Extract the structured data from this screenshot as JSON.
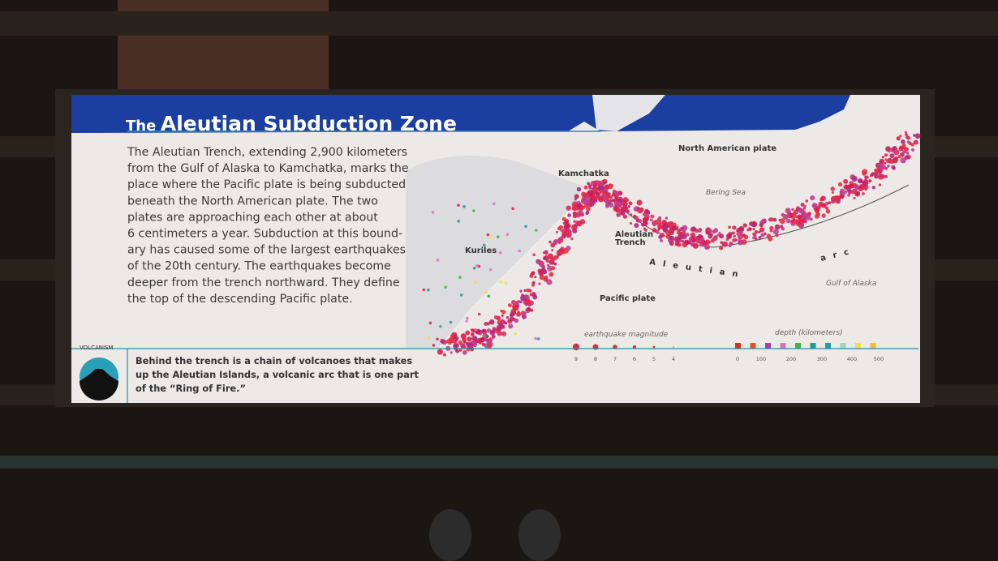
{
  "sign": {
    "title_prefix": "The",
    "title": "Aleutian Subduction Zone",
    "body_lines": [
      "The Aleutian Trench, extending 2,900 kilometers",
      "from the Gulf of Alaska to Kamchatka, marks the",
      "place where the Pacific plate is being subducted",
      "beneath the North American plate. The two",
      "plates are approaching each other at about",
      "6 centimeters a year. Subduction at this bound-",
      "ary has caused some of the largest earthquakes",
      "of the 20th century. The earthquakes become",
      "deeper from the trench northward. They define",
      "the top of the descending Pacific plate."
    ],
    "map_labels": {
      "north_american_plate": "North American plate",
      "bering_sea": "Bering Sea",
      "kamchatka": "Kamchatka",
      "trench": [
        "Aleutian",
        "Trench"
      ],
      "kuriles": "Kuriles",
      "arc": [
        "Aleutian",
        "arc"
      ],
      "pacific_plate": "Pacific plate",
      "gulf_of_alaska": "Gulf of Alaska"
    },
    "legend": {
      "magnitude_title": "earthquake magnitude",
      "magnitudes": [
        "9",
        "8",
        "7",
        "6",
        "5",
        "4"
      ],
      "depth_title": "depth (kilometers)",
      "depths": [
        "0",
        "100",
        "200",
        "300",
        "400",
        "500"
      ]
    },
    "callout": {
      "heading": "VOLCANISM",
      "lines": [
        "Behind the trench is a chain of volcanoes that makes",
        "up the Aleutian Islands, a volcanic arc that is one part",
        "of the “Ring of Fire.”"
      ]
    }
  }
}
